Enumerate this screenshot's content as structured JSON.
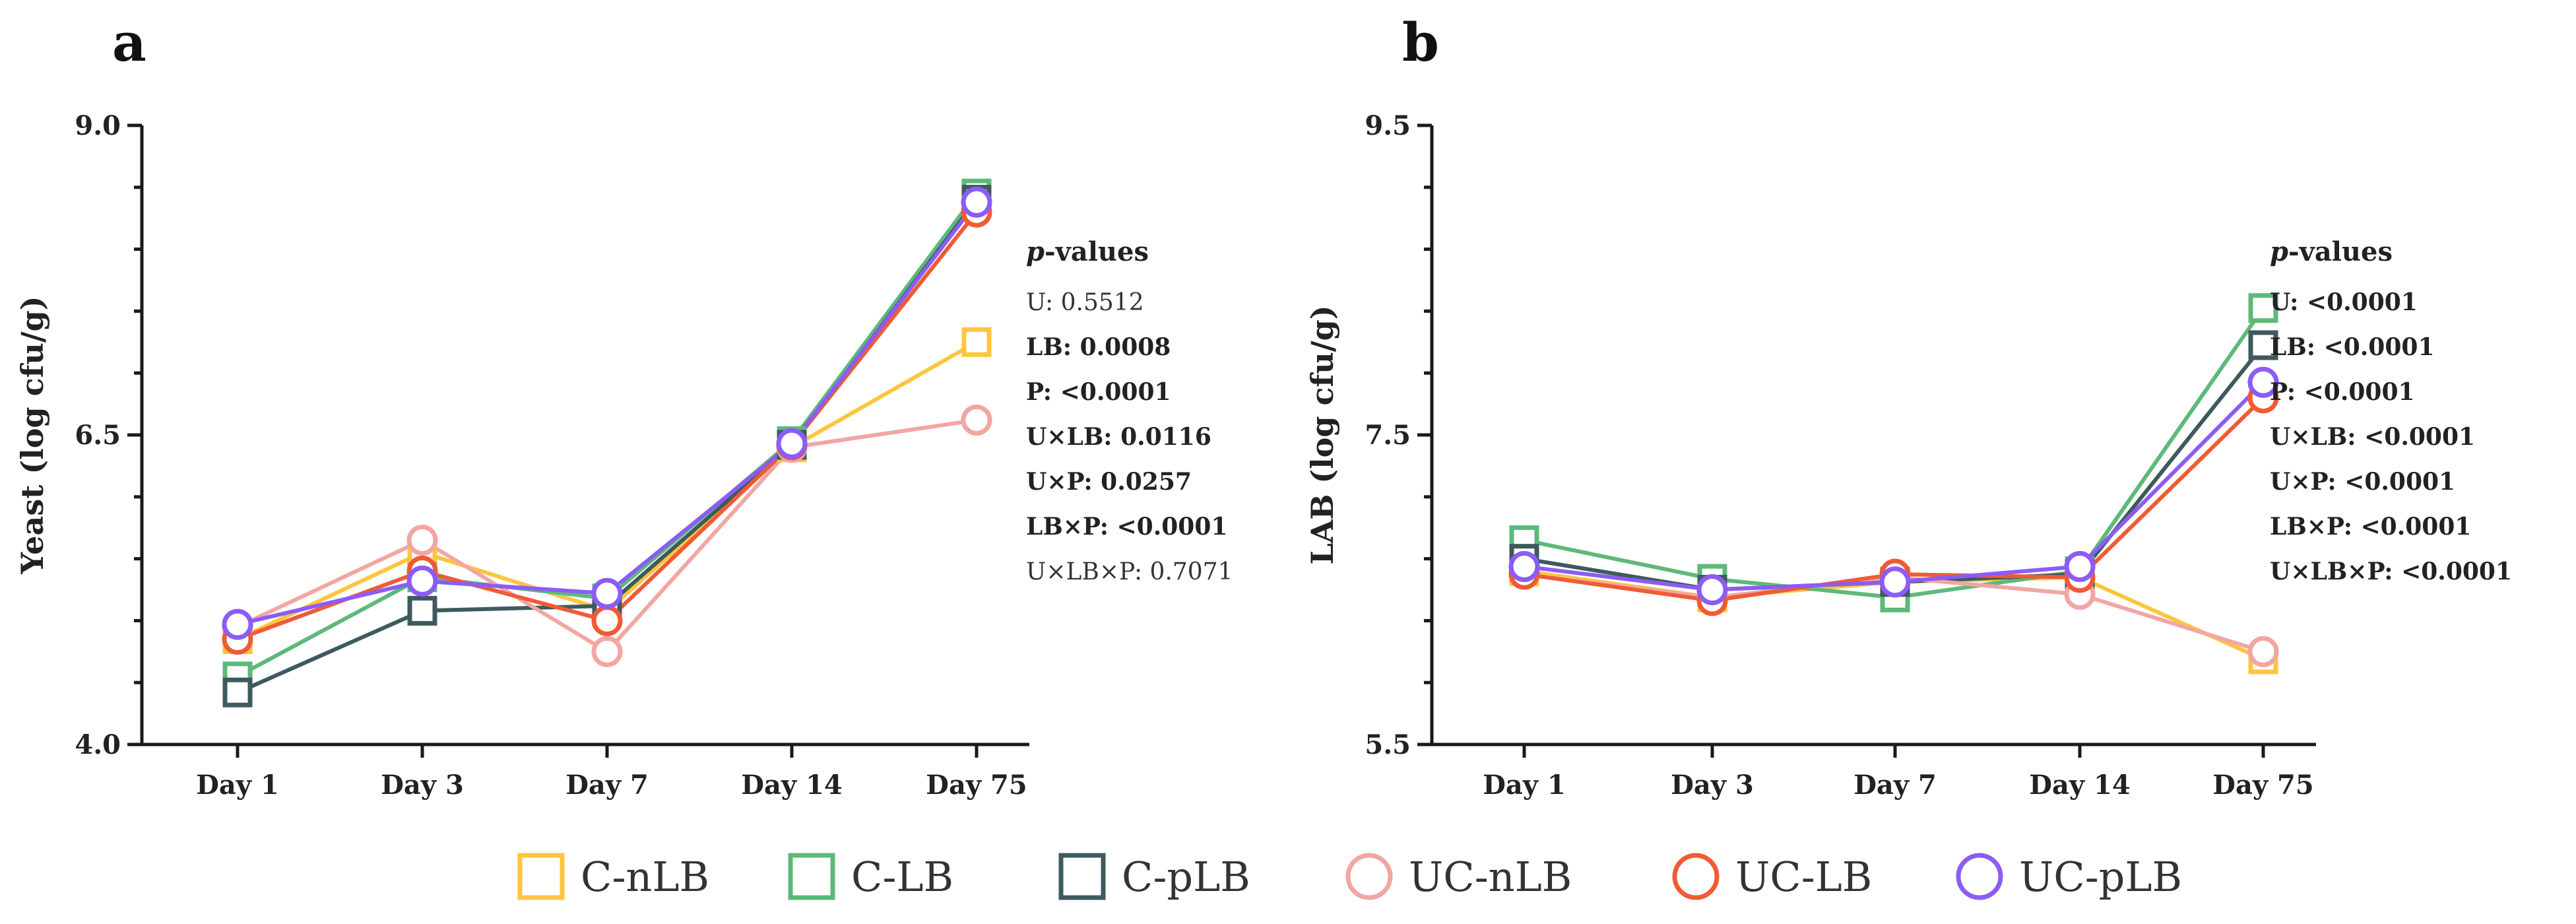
{
  "chart_data": [
    {
      "panel_letter": "a",
      "type": "line",
      "ylabel": "Yeast (log cfu/g)",
      "xlabel": "",
      "categories": [
        "Day 1",
        "Day 3",
        "Day 7",
        "Day 14",
        "Day 75"
      ],
      "ylim": [
        4.0,
        9.0
      ],
      "yticks": [
        "4.0",
        "6.5",
        "9.0"
      ],
      "series": [
        {
          "name": "C-nLB",
          "values": [
            4.85,
            5.55,
            5.08,
            6.4,
            7.25
          ]
        },
        {
          "name": "C-LB",
          "values": [
            4.55,
            5.35,
            5.18,
            6.45,
            8.45
          ]
        },
        {
          "name": "C-pLB",
          "values": [
            4.42,
            5.08,
            5.12,
            6.42,
            8.4
          ]
        },
        {
          "name": "UC-nLB",
          "values": [
            4.95,
            5.65,
            4.75,
            6.4,
            6.62
          ]
        },
        {
          "name": "UC-LB",
          "values": [
            4.85,
            5.4,
            5.0,
            6.42,
            8.3
          ]
        },
        {
          "name": "UC-pLB",
          "values": [
            4.97,
            5.32,
            5.22,
            6.43,
            8.38
          ]
        }
      ],
      "pvalues": {
        "title_italic": "p",
        "title_rest": "-values",
        "lines": [
          {
            "text": "U: 0.5512",
            "bold": false
          },
          {
            "text": "LB: 0.0008",
            "bold": true
          },
          {
            "text": "P: <0.0001",
            "bold": true
          },
          {
            "text": "U×LB: 0.0116",
            "bold": true
          },
          {
            "text": "U×P: 0.0257",
            "bold": true
          },
          {
            "text": "LB×P: <0.0001",
            "bold": true
          },
          {
            "text": "U×LB×P: 0.7071",
            "bold": false
          }
        ]
      }
    },
    {
      "panel_letter": "b",
      "type": "line",
      "ylabel": "LAB (log cfu/g)",
      "xlabel": "",
      "categories": [
        "Day 1",
        "Day 3",
        "Day 7",
        "Day 14",
        "Day 75"
      ],
      "ylim": [
        5.5,
        9.5
      ],
      "yticks": [
        "5.5",
        "7.5",
        "9.5"
      ],
      "series": [
        {
          "name": "C-nLB",
          "values": [
            6.62,
            6.45,
            6.55,
            6.58,
            6.05
          ]
        },
        {
          "name": "C-LB",
          "values": [
            6.82,
            6.57,
            6.45,
            6.62,
            8.32
          ]
        },
        {
          "name": "C-pLB",
          "values": [
            6.7,
            6.5,
            6.55,
            6.6,
            8.08
          ]
        },
        {
          "name": "UC-nLB",
          "values": [
            6.6,
            6.45,
            6.58,
            6.47,
            6.1
          ]
        },
        {
          "name": "UC-LB",
          "values": [
            6.6,
            6.43,
            6.6,
            6.58,
            7.74
          ]
        },
        {
          "name": "UC-pLB",
          "values": [
            6.65,
            6.5,
            6.55,
            6.65,
            7.84
          ]
        }
      ],
      "pvalues": {
        "title_italic": "p",
        "title_rest": "-values",
        "lines": [
          {
            "text": "U: <0.0001",
            "bold": true
          },
          {
            "text": "LB: <0.0001",
            "bold": true
          },
          {
            "text": "P: <0.0001",
            "bold": true
          },
          {
            "text": "U×LB: <0.0001",
            "bold": true
          },
          {
            "text": "U×P: <0.0001",
            "bold": true
          },
          {
            "text": "LB×P: <0.0001",
            "bold": true
          },
          {
            "text": "U×LB×P: <0.0001",
            "bold": true
          }
        ]
      }
    }
  ],
  "series_styles": [
    {
      "name": "C-nLB",
      "marker": "square",
      "color": "#FFC53D"
    },
    {
      "name": "C-LB",
      "marker": "square",
      "color": "#5DB97A"
    },
    {
      "name": "C-pLB",
      "marker": "square",
      "color": "#3E5A5E"
    },
    {
      "name": "UC-nLB",
      "marker": "circle",
      "color": "#F2A6A3"
    },
    {
      "name": "UC-LB",
      "marker": "circle",
      "color": "#EF5B35"
    },
    {
      "name": "UC-pLB",
      "marker": "circle",
      "color": "#8B5CF6"
    }
  ],
  "legend": {
    "placement": "bottom-center",
    "items": [
      "C-nLB",
      "C-LB",
      "C-pLB",
      "UC-nLB",
      "UC-LB",
      "UC-pLB"
    ]
  }
}
